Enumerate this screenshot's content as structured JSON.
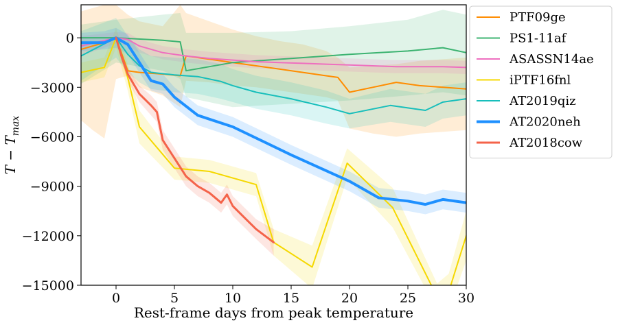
{
  "chart_data": {
    "type": "line",
    "xlabel": "Rest-frame days from peak temperature",
    "ylabel_main": "T − T",
    "ylabel_sub": "max",
    "xlim": [
      -3,
      30
    ],
    "ylim": [
      -15000,
      2000
    ],
    "xticks": [
      0,
      5,
      10,
      15,
      20,
      25,
      30
    ],
    "yticks": [
      0,
      -3000,
      -6000,
      -9000,
      -12000,
      -15000
    ],
    "ytick_labels": [
      "0",
      "−3000",
      "−6000",
      "−9000",
      "−12000",
      "−15000"
    ],
    "grid": false,
    "legend_position": "top-right",
    "series": [
      {
        "name": "PTF09ge",
        "color": "#ff8c00",
        "width": 2,
        "x": [
          -3,
          -2,
          -1,
          0,
          1,
          2,
          4,
          5.5,
          6,
          8,
          10,
          12,
          14,
          16,
          18,
          19,
          20,
          22,
          24,
          25,
          26,
          28,
          30
        ],
        "y": [
          -700,
          -500,
          -300,
          0,
          -2000,
          -2100,
          -2200,
          -2300,
          -1100,
          -1300,
          -1500,
          -1700,
          -1900,
          -2100,
          -2300,
          -2400,
          -3300,
          -3000,
          -2700,
          -2800,
          -2900,
          -3000,
          -3100
        ],
        "lo": [
          -5000,
          -5600,
          -6100,
          -2500,
          -2300,
          -3000,
          -3500,
          -4200,
          -2600,
          -2700,
          -2900,
          -3000,
          -3200,
          -3400,
          -3600,
          -3800,
          -5500,
          -5800,
          -6000,
          -5900,
          -5800,
          -5700,
          -5600
        ],
        "hi": [
          1600,
          1800,
          2000,
          2000,
          1400,
          1000,
          700,
          2000,
          1500,
          1000,
          500,
          100,
          -200,
          -400,
          -800,
          -1200,
          -1800,
          -1700,
          -1600,
          -1500,
          -1400,
          -1300,
          -1200
        ]
      },
      {
        "name": "PS1-11af",
        "color": "#3cb371",
        "width": 2,
        "x": [
          -3,
          0,
          4,
          5.5,
          6,
          10,
          15,
          20,
          25,
          28,
          30
        ],
        "y": [
          0,
          0,
          -150,
          -250,
          -2000,
          -1500,
          -1250,
          -1000,
          -800,
          -600,
          -900
        ],
        "lo": [
          -2800,
          -1500,
          -2000,
          -2500,
          -3600,
          -4200,
          -4000,
          -3800,
          -3500,
          -3300,
          -3500
        ],
        "hi": [
          800,
          1100,
          1400,
          1500,
          300,
          300,
          400,
          700,
          1100,
          1700,
          1400
        ]
      },
      {
        "name": "ASASSN14ae",
        "color": "#ee6fbf",
        "width": 2,
        "x": [
          -3,
          0,
          1,
          2,
          4,
          6,
          8,
          10,
          12,
          14,
          16,
          18,
          20,
          22,
          24,
          26,
          28,
          30
        ],
        "y": [
          -500,
          0,
          -100,
          -500,
          -900,
          -1100,
          -1250,
          -1350,
          -1450,
          -1500,
          -1550,
          -1600,
          -1650,
          -1700,
          -1750,
          -1750,
          -1750,
          -1800
        ],
        "lo": [
          -1100,
          -350,
          -500,
          -900,
          -1300,
          -1500,
          -1650,
          -1750,
          -1850,
          -1900,
          -1950,
          -2000,
          -2050,
          -2100,
          -2150,
          -2150,
          -2150,
          -2200
        ],
        "hi": [
          100,
          350,
          300,
          -100,
          -500,
          -700,
          -850,
          -950,
          -1050,
          -1100,
          -1150,
          -1200,
          -1250,
          -1300,
          -1350,
          -1350,
          -1350,
          -1400
        ]
      },
      {
        "name": "iPTF16fnl",
        "color": "#f5d800",
        "width": 2,
        "x": [
          -3,
          -1,
          0,
          1,
          2,
          5,
          8,
          12,
          13.5,
          16.8,
          19.8,
          23.7,
          27.5,
          28.5,
          30
        ],
        "y": [
          -2100,
          -1800,
          0,
          -2400,
          -5400,
          -7900,
          -8100,
          -8900,
          -12400,
          -13900,
          -7600,
          -10300,
          -15700,
          -15400,
          -12000
        ],
        "lo": [
          -2700,
          -2400,
          -600,
          -3200,
          -6400,
          -8600,
          -8800,
          -9600,
          -13200,
          -15200,
          -8500,
          -11500,
          -16500,
          -16500,
          -13500
        ],
        "hi": [
          -1500,
          -1200,
          600,
          -1600,
          -4400,
          -7200,
          -7400,
          -8200,
          -11600,
          -12600,
          -6700,
          -9100,
          -14900,
          -14300,
          -10500
        ]
      },
      {
        "name": "AT2019qiz",
        "color": "#17bebb",
        "width": 2,
        "x": [
          -3,
          0,
          1,
          2,
          3,
          5,
          7,
          9,
          10,
          12,
          15,
          18,
          20,
          23.5,
          26.5,
          28,
          30
        ],
        "y": [
          -1100,
          0,
          -1000,
          -1700,
          -2100,
          -2250,
          -2350,
          -2650,
          -2900,
          -3300,
          -3700,
          -4200,
          -4600,
          -4100,
          -4400,
          -3900,
          -3700
        ],
        "lo": [
          -2600,
          -1200,
          -2100,
          -2700,
          -3100,
          -3300,
          -3400,
          -3700,
          -3900,
          -4300,
          -4700,
          -5200,
          -5500,
          -5100,
          -5400,
          -4900,
          -4700
        ],
        "hi": [
          400,
          1200,
          100,
          -700,
          -1100,
          -1200,
          -1300,
          -1600,
          -1900,
          -2300,
          -2700,
          -3200,
          -3700,
          -3100,
          -3400,
          -2900,
          -2700
        ]
      },
      {
        "name": "AT2020neh",
        "color": "#1e90ff",
        "width": 4,
        "x": [
          -3,
          -1,
          0,
          1,
          2,
          3,
          4,
          5,
          7,
          10,
          15,
          20,
          22.5,
          25,
          26.5,
          28,
          30
        ],
        "y": [
          -300,
          -300,
          0,
          -400,
          -1500,
          -2600,
          -2800,
          -3600,
          -4700,
          -5400,
          -7100,
          -8700,
          -9700,
          -9900,
          -10100,
          -9800,
          -10000
        ],
        "lo": [
          -800,
          -700,
          -600,
          -1000,
          -2100,
          -3200,
          -3400,
          -4200,
          -5300,
          -6000,
          -7700,
          -9300,
          -10300,
          -10500,
          -10700,
          -10400,
          -10600
        ],
        "hi": [
          300,
          400,
          600,
          200,
          -900,
          -2000,
          -2200,
          -3000,
          -4100,
          -4800,
          -6500,
          -8100,
          -9100,
          -9300,
          -9500,
          -9200,
          -9400
        ]
      },
      {
        "name": "AT2018cow",
        "color": "#f4634a",
        "width": 3,
        "x": [
          0,
          0.5,
          1,
          2,
          3,
          3.5,
          4,
          5,
          6,
          7,
          8,
          9,
          9.5,
          10,
          11,
          12,
          13.5
        ],
        "y": [
          0,
          -1200,
          -2200,
          -3400,
          -4100,
          -4500,
          -6200,
          -7300,
          -8400,
          -9000,
          -9400,
          -10000,
          -9500,
          -10200,
          -10900,
          -11600,
          -12400
        ],
        "lo": [
          0,
          -1500,
          -2600,
          -3900,
          -4700,
          -5100,
          -6800,
          -7900,
          -9000,
          -9600,
          -10000,
          -10600,
          -10100,
          -10800,
          -11500,
          -12200,
          -13200
        ],
        "hi": [
          0,
          -900,
          -1800,
          -2900,
          -3500,
          -3900,
          -5600,
          -6700,
          -7800,
          -8400,
          -8800,
          -9400,
          -8900,
          -9600,
          -10300,
          -11000,
          -11600
        ]
      }
    ]
  }
}
